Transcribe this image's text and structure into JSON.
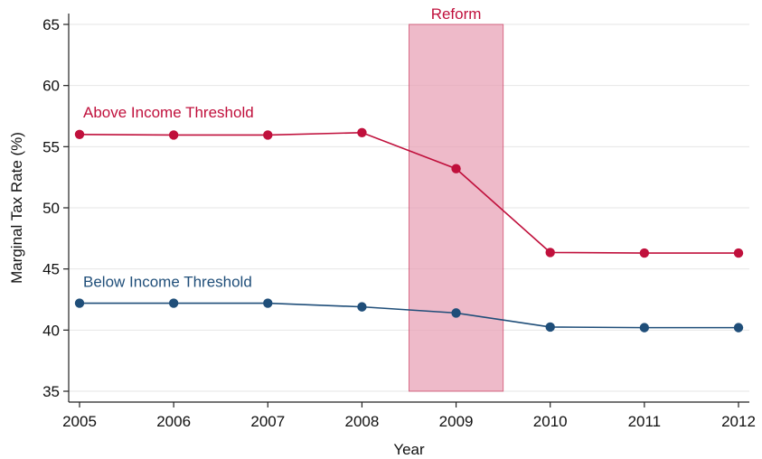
{
  "chart_data": {
    "type": "line",
    "title": "",
    "xlabel": "Year",
    "ylabel": "Marginal Tax Rate (%)",
    "x": [
      2005,
      2006,
      2007,
      2008,
      2009,
      2010,
      2011,
      2012
    ],
    "xlim": [
      2005,
      2012
    ],
    "ylim": [
      35,
      65
    ],
    "yticks": [
      35,
      40,
      45,
      50,
      55,
      60,
      65
    ],
    "grid": true,
    "legend": "none",
    "series": [
      {
        "name": "Above Income Threshold",
        "color": "#c0103c",
        "values": [
          56.0,
          55.95,
          55.95,
          56.15,
          53.2,
          46.35,
          46.3,
          46.3
        ]
      },
      {
        "name": "Below Income Threshold",
        "color": "#1f4e79",
        "values": [
          42.2,
          42.2,
          42.2,
          41.9,
          41.4,
          40.25,
          40.2,
          40.2
        ]
      }
    ],
    "annotations": [
      {
        "label": "Reform",
        "x_start": 2008.5,
        "x_end": 2009.5,
        "color": "#e8a0b4",
        "edge_color": "#c0103c"
      }
    ]
  }
}
